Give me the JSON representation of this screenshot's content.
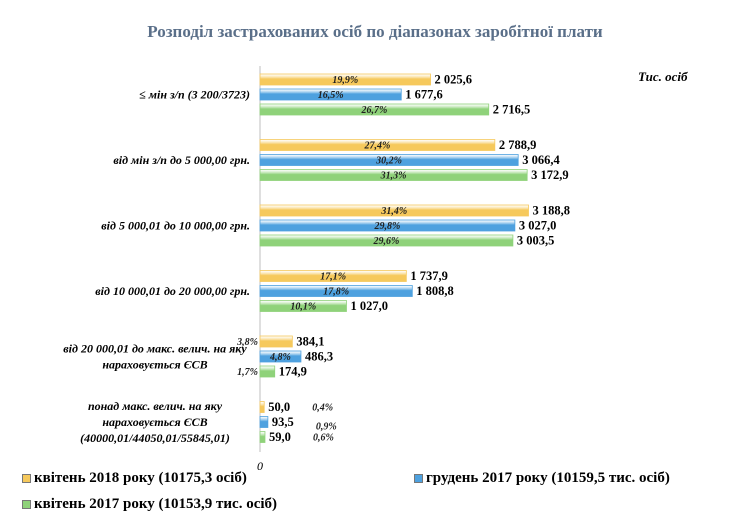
{
  "chart_data": {
    "type": "bar",
    "orientation": "horizontal",
    "title": "Розподіл застрахованих осіб по діапазонах заробітної плати",
    "units": "Тис. осіб",
    "categories": [
      [
        "≤ мін з/п (3 200/3723)"
      ],
      [
        "від мін з/п до 5 000,00 грн."
      ],
      [
        "від 5 000,01 до 10 000,00 грн."
      ],
      [
        "від 10 000,01 до 20 000,00 грн."
      ],
      [
        "від 20 000,01 до макс. велич. на яку",
        "нараховується ЄСВ"
      ],
      [
        "понад  макс. велич. на яку",
        "нараховується ЄСВ",
        "(40000,01/44050,01/55845,01)"
      ]
    ],
    "x_axis": {
      "min": 0,
      "max": 6000,
      "tick_labels": [
        "0"
      ]
    },
    "grid": false,
    "legend_position": "bottom",
    "series": [
      {
        "name": "квітень  2018 року (10175,3 осіб)",
        "color": "#f6c95c",
        "values": [
          2025.6,
          2788.9,
          3188.8,
          1737.9,
          384.1,
          50.0
        ],
        "value_labels": [
          "2 025,6",
          "2 788,9",
          "3 188,8",
          "1 737,9",
          "384,1",
          "50,0"
        ],
        "pct_labels": [
          "19,9%",
          "27,4%",
          "31,4%",
          "17,1%",
          "3,8%",
          "0,4%"
        ]
      },
      {
        "name": "грудень 2017 року (10159,5 тис. осіб)",
        "color": "#4ea1df",
        "values": [
          1677.6,
          3066.4,
          3027.0,
          1808.8,
          486.3,
          93.5
        ],
        "value_labels": [
          "1 677,6",
          "3 066,4",
          "3 027,0",
          "1 808,8",
          "486,3",
          "93,5"
        ],
        "pct_labels": [
          "16,5%",
          "30,2%",
          "29,8%",
          "17,8%",
          "4,8%",
          "0,9%"
        ]
      },
      {
        "name": "квітень 2017 року (10153,9 тис. осіб)",
        "color": "#8fd27a",
        "values": [
          2716.5,
          3172.9,
          3003.5,
          1027.0,
          174.9,
          59.0
        ],
        "value_labels": [
          "2 716,5",
          "3 172,9",
          "3 003,5",
          "1 027,0",
          "174,9",
          "59,0"
        ],
        "pct_labels": [
          "26,7%",
          "31,3%",
          "29,6%",
          "10,1%",
          "1,7%",
          "0,6%"
        ]
      }
    ]
  }
}
